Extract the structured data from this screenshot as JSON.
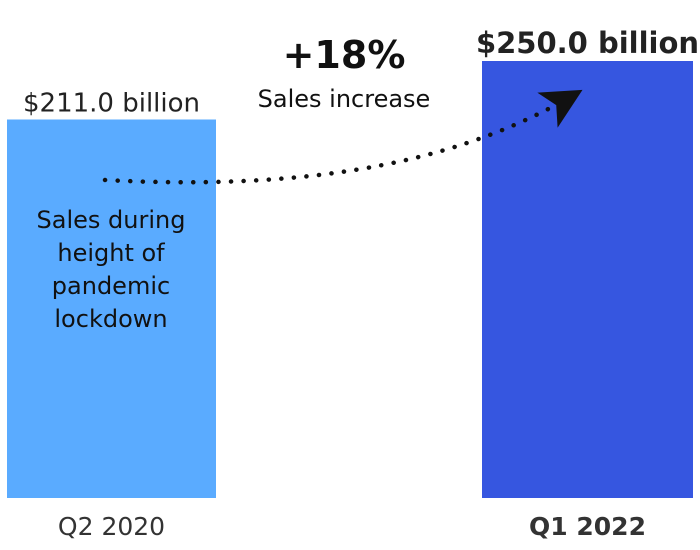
{
  "chart_data": {
    "type": "bar",
    "title": "",
    "xlabel": "",
    "ylabel": "",
    "ylim": [
      0,
      250
    ],
    "grid": false,
    "legend": "none",
    "categories": [
      "Q2 2020",
      "Q1 2022"
    ],
    "values": [
      211.0,
      250.0
    ],
    "value_labels": [
      "$211.0 billion",
      "$250.0 billion"
    ],
    "colors": [
      "#5aabff",
      "#3656e0"
    ],
    "annotations": {
      "bar_note": "Sales during\nheight of\npandemic\nlockdown",
      "change_pct": "+18%",
      "change_label": "Sales increase"
    }
  }
}
